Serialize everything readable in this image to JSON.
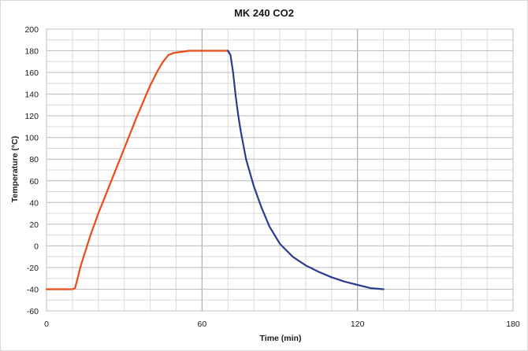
{
  "chart_data": {
    "type": "line",
    "title": "MK 240 CO2",
    "xlabel": "Time (min)",
    "ylabel": "Temperature (°C)",
    "xlim": [
      0,
      180
    ],
    "ylim": [
      -60,
      200
    ],
    "xticks": [
      0,
      60,
      120,
      180
    ],
    "yticks": [
      -60,
      -40,
      -20,
      0,
      20,
      40,
      60,
      80,
      100,
      120,
      140,
      160,
      180,
      200
    ],
    "x_minor_step": 10,
    "y_minor_step": 10,
    "grid": true,
    "legend": "none",
    "series": [
      {
        "color": "#ea4b17",
        "x": [
          0,
          10,
          11,
          12,
          13,
          15,
          17,
          20,
          25,
          30,
          35,
          40,
          43,
          45,
          47,
          49,
          52,
          55,
          60,
          65,
          70
        ],
        "y": [
          -40,
          -40,
          -39,
          -30,
          -20,
          -5,
          10,
          30,
          60,
          90,
          120,
          148,
          162,
          170,
          176,
          178,
          179,
          180,
          180,
          180,
          180
        ]
      },
      {
        "color": "#2b3c8f",
        "x": [
          70,
          71,
          72,
          73,
          74,
          75,
          77,
          80,
          83,
          86,
          90,
          95,
          100,
          105,
          110,
          115,
          120,
          125,
          130
        ],
        "y": [
          180,
          176,
          160,
          138,
          120,
          105,
          80,
          55,
          35,
          18,
          2,
          -10,
          -18,
          -24,
          -29,
          -33,
          -36,
          -39,
          -40
        ]
      }
    ]
  }
}
